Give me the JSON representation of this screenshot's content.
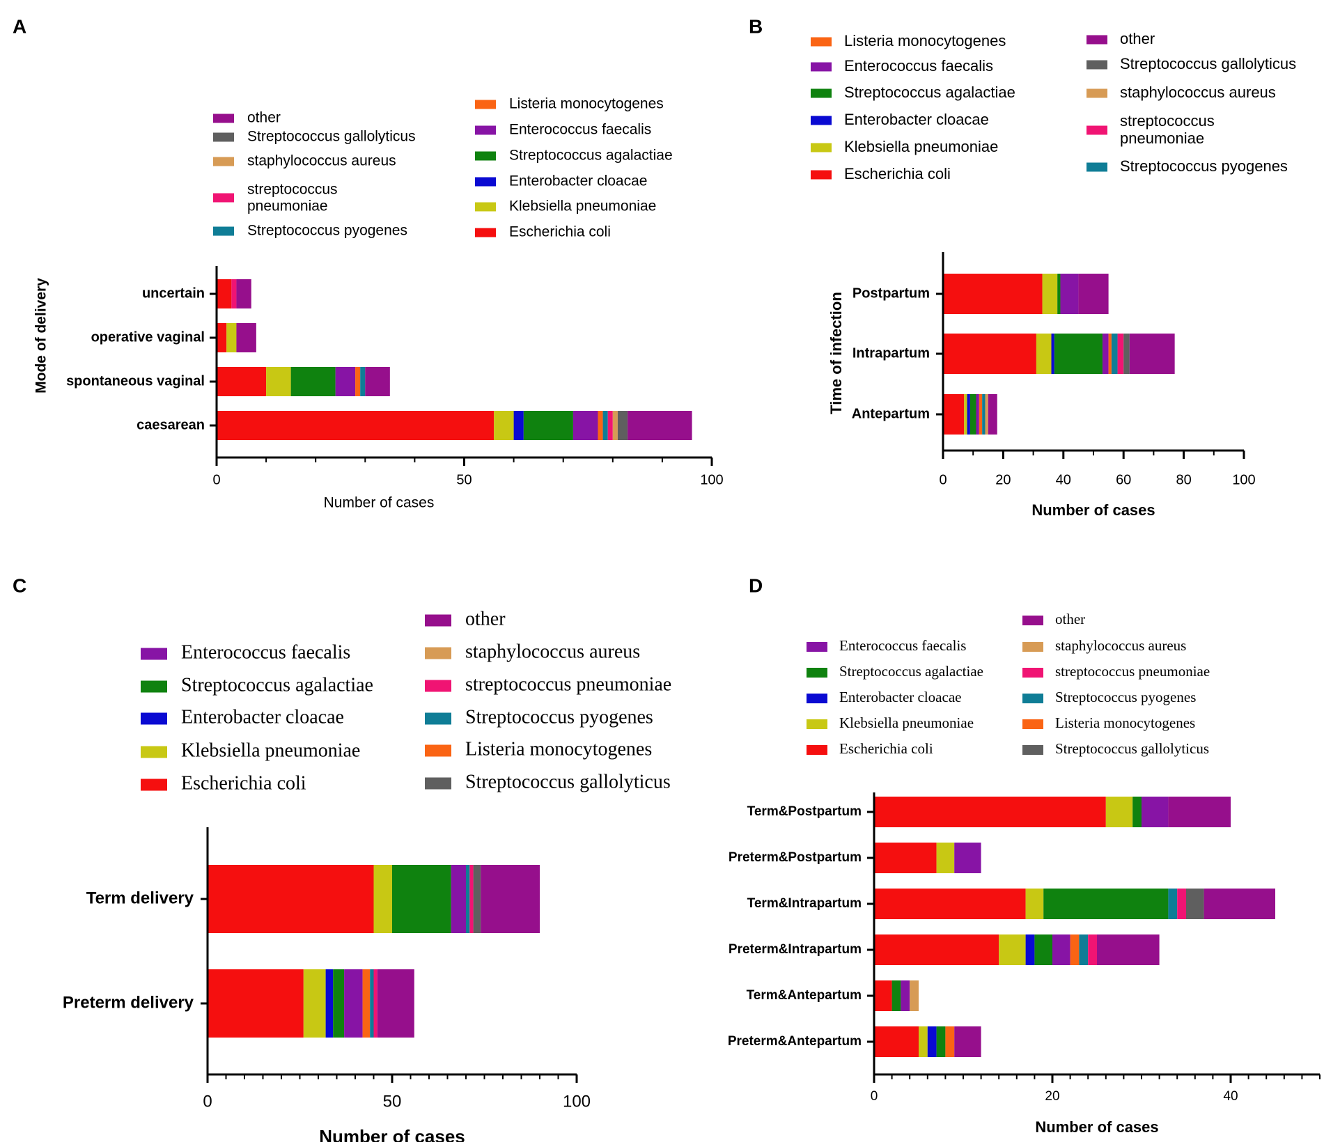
{
  "colors": {
    "Escherichia coli": "#f50f0f",
    "Klebsiella pneumoniae": "#c8c814",
    "Enterobacter cloacae": "#0a0ad2",
    "Streptococcus agalactiae": "#0f820f",
    "Enterococcus faecalis": "#8714a5",
    "Listeria monocytogenes": "#fa6414",
    "Streptococcus pyogenes": "#0f7d96",
    "streptococcus pneumoniae": "#f01473",
    "staphylococcus aureus": "#d79b55",
    "Streptococcus gallolyticus": "#5f5f5f",
    "other": "#960f8c"
  },
  "chart_data": [
    {
      "panel": "A",
      "type": "bar",
      "orientation": "horizontal",
      "stacked": true,
      "xlabel": "Number of cases",
      "ylabel": "Mode of delivery",
      "xlim": [
        0,
        100
      ],
      "xticks": [
        0,
        50,
        100
      ],
      "categories": [
        "uncertain",
        "operative vaginal",
        "spontaneous vaginal",
        "caesarean"
      ],
      "legend": {
        "columns": [
          [
            "other",
            "Streptococcus gallolyticus",
            "staphylococcus aureus",
            "streptococcus pneumoniae",
            "Streptococcus pyogenes"
          ],
          [
            "Listeria monocytogenes",
            "Enterococcus faecalis",
            "Streptococcus agalactiae",
            "Enterobacter cloacae",
            "Klebsiella pneumoniae",
            "Escherichia coli"
          ]
        ]
      },
      "series": [
        {
          "name": "Escherichia coli",
          "values": [
            3,
            2,
            10,
            56
          ]
        },
        {
          "name": "Klebsiella pneumoniae",
          "values": [
            0,
            2,
            5,
            4
          ]
        },
        {
          "name": "Enterobacter cloacae",
          "values": [
            0,
            0,
            0,
            2
          ]
        },
        {
          "name": "Streptococcus agalactiae",
          "values": [
            0,
            0,
            9,
            10
          ]
        },
        {
          "name": "Enterococcus faecalis",
          "values": [
            0,
            0,
            4,
            5
          ]
        },
        {
          "name": "Listeria monocytogenes",
          "values": [
            0,
            0,
            1,
            1
          ]
        },
        {
          "name": "Streptococcus pyogenes",
          "values": [
            0,
            0,
            1,
            1
          ]
        },
        {
          "name": "streptococcus pneumoniae",
          "values": [
            1,
            0,
            0,
            1
          ]
        },
        {
          "name": "staphylococcus aureus",
          "values": [
            0,
            0,
            0,
            1
          ]
        },
        {
          "name": "Streptococcus gallolyticus",
          "values": [
            0,
            0,
            0,
            2
          ]
        },
        {
          "name": "other",
          "values": [
            3,
            4,
            5,
            13
          ]
        }
      ]
    },
    {
      "panel": "B",
      "type": "bar",
      "orientation": "horizontal",
      "stacked": true,
      "xlabel": "Number of cases",
      "ylabel": "Time of infection",
      "xlim": [
        0,
        100
      ],
      "xticks": [
        0,
        20,
        40,
        60,
        80,
        100
      ],
      "categories": [
        "Postpartum",
        "Intrapartum",
        "Antepartum"
      ],
      "legend": {
        "columns": [
          [
            "Listeria monocytogenes",
            "Enterococcus faecalis",
            "Streptococcus agalactiae",
            "Enterobacter cloacae",
            "Klebsiella pneumoniae",
            "Escherichia coli"
          ],
          [
            "other",
            "Streptococcus gallolyticus",
            "staphylococcus aureus",
            "streptococcus pneumoniae",
            "Streptococcus pyogenes"
          ]
        ]
      },
      "series": [
        {
          "name": "Escherichia coli",
          "values": [
            33,
            31,
            7
          ]
        },
        {
          "name": "Klebsiella pneumoniae",
          "values": [
            5,
            5,
            1
          ]
        },
        {
          "name": "Enterobacter cloacae",
          "values": [
            0,
            1,
            1
          ]
        },
        {
          "name": "Streptococcus agalactiae",
          "values": [
            1,
            16,
            2
          ]
        },
        {
          "name": "Enterococcus faecalis",
          "values": [
            6,
            2,
            1
          ]
        },
        {
          "name": "Listeria monocytogenes",
          "values": [
            0,
            1,
            1
          ]
        },
        {
          "name": "Streptococcus pyogenes",
          "values": [
            0,
            2,
            1
          ]
        },
        {
          "name": "streptococcus pneumoniae",
          "values": [
            0,
            2,
            0
          ]
        },
        {
          "name": "staphylococcus aureus",
          "values": [
            0,
            0,
            1
          ]
        },
        {
          "name": "Streptococcus gallolyticus",
          "values": [
            0,
            2,
            0
          ]
        },
        {
          "name": "other",
          "values": [
            10,
            15,
            3
          ]
        }
      ]
    },
    {
      "panel": "C",
      "type": "bar",
      "orientation": "horizontal",
      "stacked": true,
      "xlabel": "Number of cases",
      "ylabel": "",
      "xlim": [
        0,
        100
      ],
      "xticks": [
        0,
        50,
        100
      ],
      "categories": [
        "Term delivery",
        "Preterm delivery"
      ],
      "legend": {
        "columns": [
          [
            "Enterococcus faecalis",
            "Streptococcus agalactiae",
            "Enterobacter cloacae",
            "Klebsiella pneumoniae",
            "Escherichia coli"
          ],
          [
            "other",
            "staphylococcus aureus",
            "streptococcus pneumoniae",
            "Streptococcus pyogenes",
            "Listeria monocytogenes",
            "Streptococcus gallolyticus"
          ]
        ]
      },
      "series": [
        {
          "name": "Escherichia coli",
          "values": [
            45,
            26
          ]
        },
        {
          "name": "Klebsiella pneumoniae",
          "values": [
            5,
            6
          ]
        },
        {
          "name": "Enterobacter cloacae",
          "values": [
            0,
            2
          ]
        },
        {
          "name": "Streptococcus agalactiae",
          "values": [
            16,
            3
          ]
        },
        {
          "name": "Enterococcus faecalis",
          "values": [
            4,
            5
          ]
        },
        {
          "name": "Listeria monocytogenes",
          "values": [
            0,
            2
          ]
        },
        {
          "name": "Streptococcus pyogenes",
          "values": [
            1,
            1
          ]
        },
        {
          "name": "streptococcus pneumoniae",
          "values": [
            1,
            1
          ]
        },
        {
          "name": "staphylococcus aureus",
          "values": [
            0,
            0
          ]
        },
        {
          "name": "Streptococcus gallolyticus",
          "values": [
            2,
            0
          ]
        },
        {
          "name": "other",
          "values": [
            16,
            10
          ]
        }
      ]
    },
    {
      "panel": "D",
      "type": "bar",
      "orientation": "horizontal",
      "stacked": true,
      "xlabel": "Number of cases",
      "ylabel": "",
      "xlim": [
        0,
        50
      ],
      "xticks": [
        0,
        20,
        40
      ],
      "categories": [
        "Term&Postpartum",
        "Preterm&Postpartum",
        "Term&Intrapartum",
        "Preterm&Intrapartum",
        "Term&Antepartum",
        "Preterm&Antepartum"
      ],
      "legend": {
        "columns": [
          [
            "Enterococcus faecalis",
            "Streptococcus agalactiae",
            "Enterobacter cloacae",
            "Klebsiella pneumoniae",
            "Escherichia coli"
          ],
          [
            "other",
            "staphylococcus aureus",
            "streptococcus pneumoniae",
            "Streptococcus pyogenes",
            "Listeria monocytogenes",
            "Streptococcus gallolyticus"
          ]
        ]
      },
      "series": [
        {
          "name": "Escherichia coli",
          "values": [
            26,
            7,
            17,
            14,
            2,
            5
          ]
        },
        {
          "name": "Klebsiella pneumoniae",
          "values": [
            3,
            2,
            2,
            3,
            0,
            1
          ]
        },
        {
          "name": "Enterobacter cloacae",
          "values": [
            0,
            0,
            0,
            1,
            0,
            1
          ]
        },
        {
          "name": "Streptococcus agalactiae",
          "values": [
            1,
            0,
            14,
            2,
            1,
            1
          ]
        },
        {
          "name": "Enterococcus faecalis",
          "values": [
            3,
            3,
            0,
            2,
            1,
            0
          ]
        },
        {
          "name": "Listeria monocytogenes",
          "values": [
            0,
            0,
            0,
            1,
            0,
            1
          ]
        },
        {
          "name": "Streptococcus pyogenes",
          "values": [
            0,
            0,
            1,
            1,
            0,
            0
          ]
        },
        {
          "name": "streptococcus pneumoniae",
          "values": [
            0,
            0,
            1,
            1,
            0,
            0
          ]
        },
        {
          "name": "staphylococcus aureus",
          "values": [
            0,
            0,
            0,
            0,
            1,
            0
          ]
        },
        {
          "name": "Streptococcus gallolyticus",
          "values": [
            0,
            0,
            2,
            0,
            0,
            0
          ]
        },
        {
          "name": "other",
          "values": [
            7,
            0,
            8,
            7,
            0,
            3
          ]
        }
      ]
    }
  ]
}
